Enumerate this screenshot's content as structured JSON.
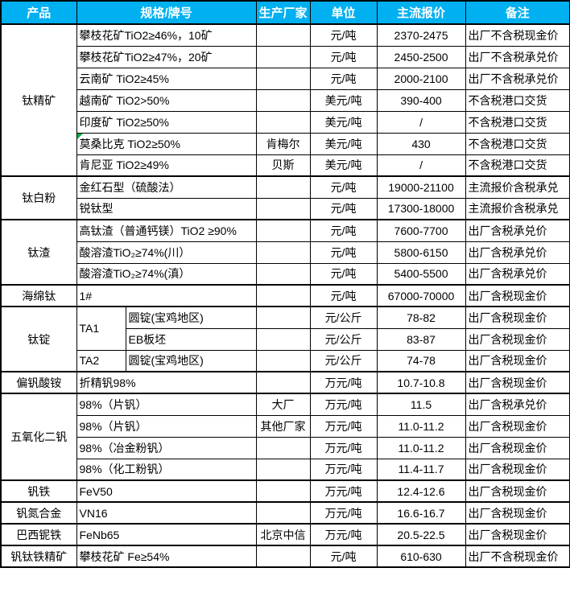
{
  "colors": {
    "header_bg": "#00B0F0",
    "header_text": "#FFFFFF",
    "border": "#000000",
    "comment_green": "#00B050"
  },
  "header": {
    "product": "产品",
    "spec": "规格/牌号",
    "maker": "生产厂家",
    "unit": "单位",
    "price": "主流报价",
    "note": "备注"
  },
  "groups": [
    {
      "name": "钛精矿"
    },
    {
      "name": "钛白粉"
    },
    {
      "name": "钛渣"
    },
    {
      "name": "海绵钛"
    },
    {
      "name": "钛锭"
    },
    {
      "name": "偏钒酸铵"
    },
    {
      "name": "五氧化二钒"
    },
    {
      "name": "钒铁"
    },
    {
      "name": "钒氮合金"
    },
    {
      "name": "巴西铌铁"
    },
    {
      "name": "钒钛铁精矿"
    }
  ],
  "rows": [
    {
      "spec": "攀枝花矿TiO2≥46%，10矿",
      "maker": "",
      "unit": "元/吨",
      "price": "2370-2475",
      "note": "出厂不含税现金价"
    },
    {
      "spec": "攀枝花矿TiO2≥47%，20矿",
      "maker": "",
      "unit": "元/吨",
      "price": "2450-2500",
      "note": "出厂不含税承兑价"
    },
    {
      "spec": "云南矿 TiO2≥45%",
      "maker": "",
      "unit": "元/吨",
      "price": "2000-2100",
      "note": "出厂不含税承兑价"
    },
    {
      "spec": "越南矿 TiO2>50%",
      "maker": "",
      "unit": "美元/吨",
      "price": "390-400",
      "note": "不含税港口交货"
    },
    {
      "spec": "印度矿 TiO2≥50%",
      "maker": "",
      "unit": "美元/吨",
      "price": "/",
      "note": "不含税港口交货"
    },
    {
      "spec": "莫桑比克 TiO2≥50%",
      "maker": "肯梅尔",
      "unit": "美元/吨",
      "price": "430",
      "note": "不含税港口交货"
    },
    {
      "spec": "肯尼亚 TiO2≥49%",
      "maker": "贝斯",
      "unit": "美元/吨",
      "price": "/",
      "note": "不含税港口交货"
    },
    {
      "spec": "金红石型（硫酸法）",
      "maker": "",
      "unit": "元/吨",
      "price": "19000-21100",
      "note": "主流报价含税承兑"
    },
    {
      "spec": "锐钛型",
      "maker": "",
      "unit": "元/吨",
      "price": "17300-18000",
      "note": "主流报价含税承兑"
    },
    {
      "spec": "高钛渣（普通钙镁）TiO2 ≥90%",
      "maker": "",
      "unit": "元/吨",
      "price": "7600-7700",
      "note": "出厂含税承兑价"
    },
    {
      "spec": "酸溶渣TiO₂≥74%(川）",
      "maker": "",
      "unit": "元/吨",
      "price": "5800-6150",
      "note": "出厂含税承兑价"
    },
    {
      "spec": "酸溶渣TiO₂≥74%(滇）",
      "maker": "",
      "unit": "元/吨",
      "price": "5400-5500",
      "note": "出厂含税承兑价"
    },
    {
      "spec": "1#",
      "maker": "",
      "unit": "元/吨",
      "price": "67000-70000",
      "note": "出厂含税现金价"
    },
    {
      "grade": "TA1",
      "spec2": "圆锭(宝鸡地区)",
      "maker": "",
      "unit": "元/公斤",
      "price": "78-82",
      "note": "出厂含税现金价"
    },
    {
      "spec2": "EB板坯",
      "maker": "",
      "unit": "元/公斤",
      "price": "83-87",
      "note": "出厂含税现金价"
    },
    {
      "grade": "TA2",
      "spec2": "圆锭(宝鸡地区)",
      "maker": "",
      "unit": "元/公斤",
      "price": "74-78",
      "note": "出厂含税现金价"
    },
    {
      "spec": "折精钒98%",
      "maker": "",
      "unit": "万元/吨",
      "price": "10.7-10.8",
      "note": "出厂含税现金价"
    },
    {
      "spec": "98%（片钒）",
      "maker": "大厂",
      "unit": "万元/吨",
      "price": "11.5",
      "note": "出厂含税承兑价"
    },
    {
      "spec": "98%（片钒）",
      "maker": "其他厂家",
      "unit": "万元/吨",
      "price": "11.0-11.2",
      "note": "出厂含税现金价"
    },
    {
      "spec": "98%（冶金粉钒）",
      "maker": "",
      "unit": "万元/吨",
      "price": "11.0-11.2",
      "note": "出厂含税现金价"
    },
    {
      "spec": "98%（化工粉钒）",
      "maker": "",
      "unit": "万元/吨",
      "price": "11.4-11.7",
      "note": "出厂含税现金价"
    },
    {
      "spec": "FeV50",
      "maker": "",
      "unit": "万元/吨",
      "price": "12.4-12.6",
      "note": "出厂含税现金价"
    },
    {
      "spec": "VN16",
      "maker": "",
      "unit": "万元/吨",
      "price": "16.6-16.7",
      "note": "出厂含税现金价"
    },
    {
      "spec": "FeNb65",
      "maker": "北京中信",
      "unit": "万元/吨",
      "price": "20.5-22.5",
      "note": "出厂含税现金价"
    },
    {
      "spec": "攀枝花矿 Fe≥54%",
      "maker": "",
      "unit": "元/吨",
      "price": "610-630",
      "note": "出厂不含税现金价"
    }
  ]
}
